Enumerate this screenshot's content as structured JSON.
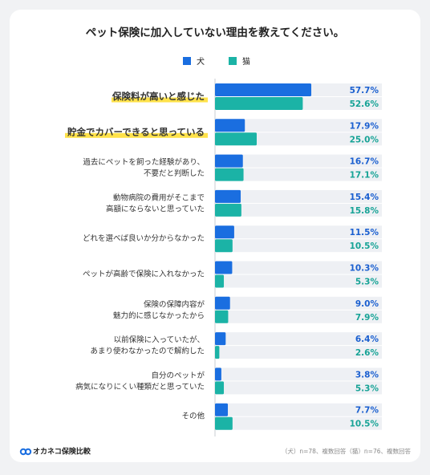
{
  "chart_data": {
    "type": "bar",
    "orientation": "horizontal",
    "title": "ペット保険に加入していない理由を教えてください。",
    "categories": [
      "保険料が高いと感じた",
      "貯金でカバーできると思っている",
      "過去にペットを飼った経験があり、\n不要だと判断した",
      "動物病院の費用がそこまで\n高額にならないと思っていた",
      "どれを選べば良いか分からなかった",
      "ペットが高齢で保険に入れなかった",
      "保険の保障内容が\n魅力的に感じなかったから",
      "以前保険に入っていたが、\nあまり使わなかったので解約した",
      "自分のペットが\n病気になりにくい種類だと思っていた",
      "その他"
    ],
    "series": [
      {
        "name": "犬",
        "color": "#1a6ee0",
        "values": [
          57.7,
          17.9,
          16.7,
          15.4,
          11.5,
          10.3,
          9.0,
          6.4,
          3.8,
          7.7
        ],
        "value_labels": [
          "57.7%",
          "17.9%",
          "16.7%",
          "15.4%",
          "11.5%",
          "10.3%",
          "9.0%",
          "6.4%",
          "3.8%",
          "7.7%"
        ]
      },
      {
        "name": "猫",
        "color": "#1bb3a6",
        "values": [
          52.6,
          25.0,
          17.1,
          15.8,
          10.5,
          5.3,
          7.9,
          2.6,
          5.3,
          10.5
        ],
        "value_labels": [
          "52.6%",
          "25.0%",
          "17.1%",
          "15.8%",
          "10.5%",
          "5.3%",
          "7.9%",
          "2.6%",
          "5.3%",
          "10.5%"
        ]
      }
    ],
    "xlim": [
      0,
      100
    ],
    "brand": "オカネコ保険比較",
    "note": "（犬）n=78、複数回答（猫）n=76、複数回答"
  }
}
